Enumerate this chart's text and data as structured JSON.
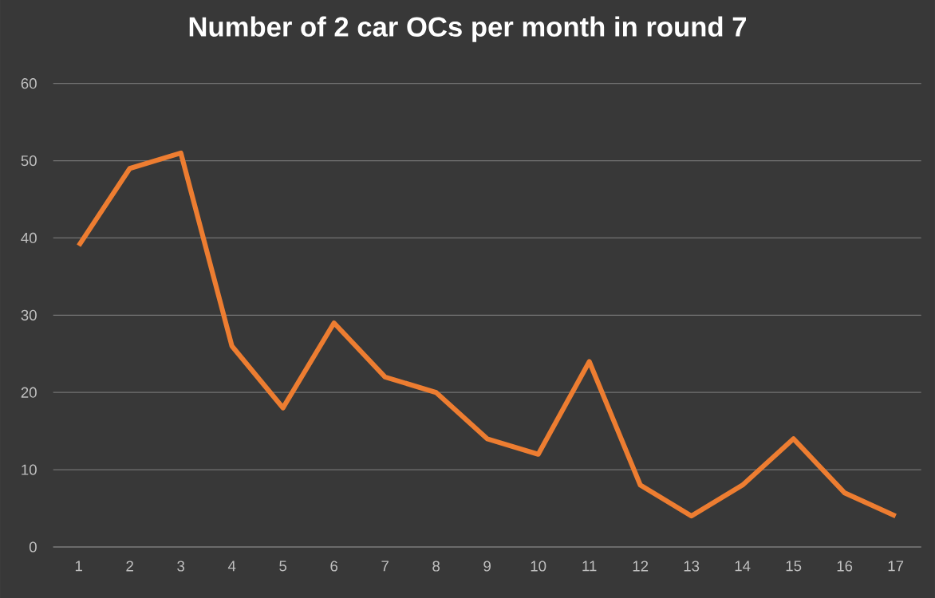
{
  "chart_data": {
    "type": "line",
    "title": "Number of 2 car OCs per month in round 7",
    "categories": [
      "1",
      "2",
      "3",
      "4",
      "5",
      "6",
      "7",
      "8",
      "9",
      "10",
      "11",
      "12",
      "13",
      "14",
      "15",
      "16",
      "17"
    ],
    "series": [
      {
        "color": "#ed7d31",
        "values": [
          39,
          49,
          51,
          26,
          18,
          29,
          22,
          20,
          14,
          12,
          24,
          8,
          4,
          8,
          14,
          7,
          4
        ]
      }
    ],
    "ylim": [
      0,
      60
    ],
    "yticks": [
      0,
      10,
      20,
      30,
      40,
      50,
      60
    ],
    "grid": "y",
    "marker": "none",
    "line_style": "solid"
  }
}
